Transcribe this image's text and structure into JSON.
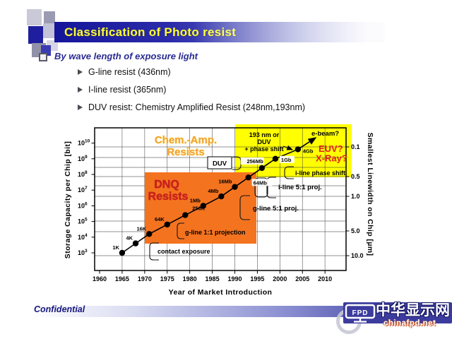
{
  "slide": {
    "title": "Classification of Photo resist",
    "bullet": "By wave length of exposure light",
    "sub_bullets": [
      "G-line resist (436nm)",
      "I-line resist (365nm)",
      "DUV resist: Chemistry Amplified Resist (248nm,193nm)"
    ],
    "footer": {
      "confidential": "Confidential",
      "logo_monitor_text": "FPD",
      "logo_cn": "中华显示网",
      "logo_url": "chinafpd.net"
    },
    "colors": {
      "title_bar": "#15159a",
      "title_text": "#ffff33",
      "dnq_box": "#f4731f",
      "chem_box": "#ffff00",
      "dnq_text": "#d01f1f",
      "chem_text": "#f2a33c",
      "future_text": "#e02020"
    }
  },
  "chart_data": {
    "type": "scatter",
    "x_label": "Year of Market Introduction",
    "y_left_label": "Storage Capacity per Chip [bit]",
    "y_right_label": "Smallest Linewidth on Chip [µm]",
    "x_ticks": [
      1960,
      1965,
      1970,
      1975,
      1980,
      1985,
      1990,
      1995,
      2000,
      2005,
      2010
    ],
    "y_left_scale": "log",
    "y_left_exponents": [
      3,
      4,
      5,
      6,
      7,
      8,
      9,
      10
    ],
    "y_right_ticks": [
      "0.1",
      "0.5",
      "1.0",
      "5.0",
      "10.0"
    ],
    "points": [
      {
        "label": "1K",
        "year": 1965,
        "bits": 1000
      },
      {
        "label": "4K",
        "year": 1968,
        "bits": 4000
      },
      {
        "label": "16K",
        "year": 1971,
        "bits": 16000
      },
      {
        "label": "64K",
        "year": 1975,
        "bits": 64000
      },
      {
        "label": "256K",
        "year": 1979,
        "bits": 256000
      },
      {
        "label": "1Mb",
        "year": 1983,
        "bits": 1000000
      },
      {
        "label": "4Mb",
        "year": 1987,
        "bits": 4000000
      },
      {
        "label": "16Mb",
        "year": 1990,
        "bits": 16000000
      },
      {
        "label": "64Mb",
        "year": 1993,
        "bits": 64000000
      },
      {
        "label": "256Mb",
        "year": 1996,
        "bits": 256000000
      },
      {
        "label": "1Gb",
        "year": 1999,
        "bits": 1000000000
      },
      {
        "label": "4Gb",
        "year": 2004,
        "bits": 4000000000
      }
    ],
    "regions": [
      {
        "name": "DNQ Resists",
        "label_lines": [
          "DNQ",
          "Resists"
        ],
        "year_range": [
          1970,
          1995
        ]
      },
      {
        "name": "Chem.-Amp. Resists",
        "label_lines": [
          "Chem.-Amp.",
          "Resists"
        ],
        "year_range": [
          1990,
          2013
        ]
      }
    ],
    "process_labels": [
      "contact exposure",
      "g-line 1:1 projection",
      "g-line 5:1 proj.",
      "i-line 5:1 proj.",
      "i-line phase shift",
      "DUV"
    ],
    "future_labels": {
      "lithography": [
        "193 nm or",
        "DUV",
        "+ phase shift"
      ],
      "candidates": [
        "e-beam?",
        "EUV?",
        "X-Ray?"
      ]
    }
  }
}
